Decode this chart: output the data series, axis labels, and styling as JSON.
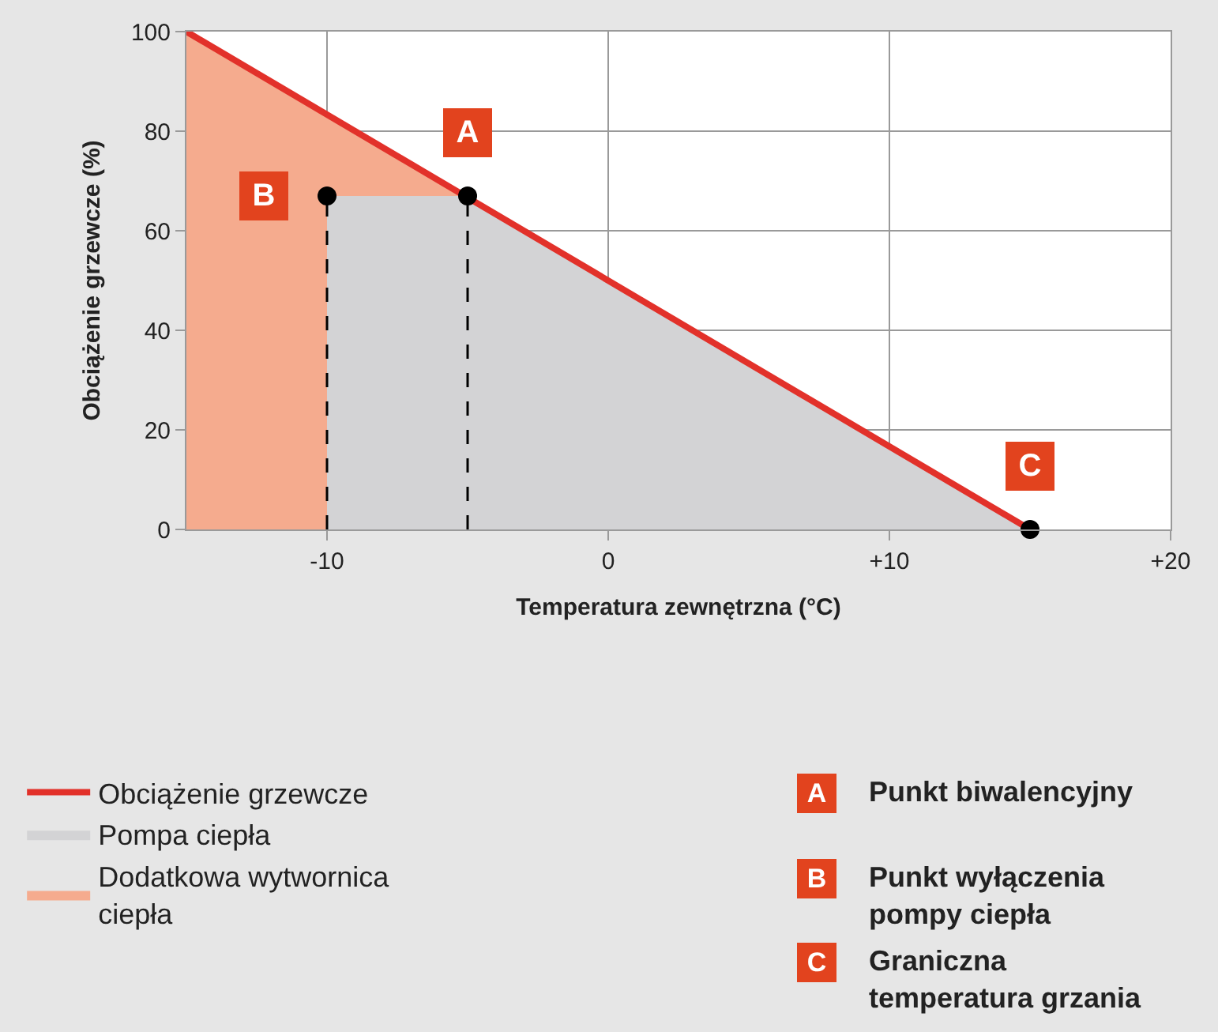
{
  "chart_data": {
    "type": "line",
    "xlabel": "Temperatura zewnętrzna (°C)",
    "ylabel": "Obciążenie grzewcze (%)",
    "xlim": [
      -15,
      20
    ],
    "xticks": [
      {
        "value": -10,
        "label": "-10"
      },
      0,
      {
        "value": 10,
        "label": "+10"
      },
      {
        "value": 20,
        "label": "+20"
      }
    ],
    "ylim": [
      0,
      100
    ],
    "yticks": [
      0,
      20,
      40,
      60,
      80,
      100
    ],
    "grid": true,
    "legend": "bottom left",
    "series": [
      {
        "name": "Dodatkowa wytwornica ciepła",
        "type": "area",
        "color": "#f5ab8e",
        "x": [
          -15,
          -10,
          -5
        ],
        "values": [
          100,
          83,
          67
        ]
      },
      {
        "name": "Pompa ciepła",
        "type": "area",
        "color": "#d3d3d5",
        "x": [
          -10,
          -5,
          15
        ],
        "values": [
          67,
          67,
          0
        ]
      },
      {
        "type": "line",
        "color": "#000000",
        "line_style": "dashed",
        "x": [
          -10,
          -10
        ],
        "values": [
          0,
          67
        ]
      },
      {
        "type": "line",
        "color": "#000000",
        "line_style": "dashed",
        "x": [
          -5,
          -5
        ],
        "values": [
          0,
          67
        ]
      },
      {
        "name": "Obciążenie grzewcze",
        "type": "line",
        "color": "#e2312a",
        "x": [
          -15,
          15
        ],
        "values": [
          100,
          0
        ]
      },
      {
        "type": "scatter",
        "color": "#000000",
        "marker": "circle",
        "x": [
          -5,
          -10,
          15
        ],
        "values": [
          67,
          67,
          0
        ]
      }
    ],
    "annotations": [
      {
        "text": "A",
        "x": -5,
        "y": 67
      },
      {
        "text": "B",
        "x": -10,
        "y": 67
      },
      {
        "text": "C",
        "x": 15,
        "y": 0
      },
      "Punkt biwalencyjny",
      "Punkt wyłączenia pompy ciepła",
      "Graniczna temperatura grzania"
    ]
  }
}
